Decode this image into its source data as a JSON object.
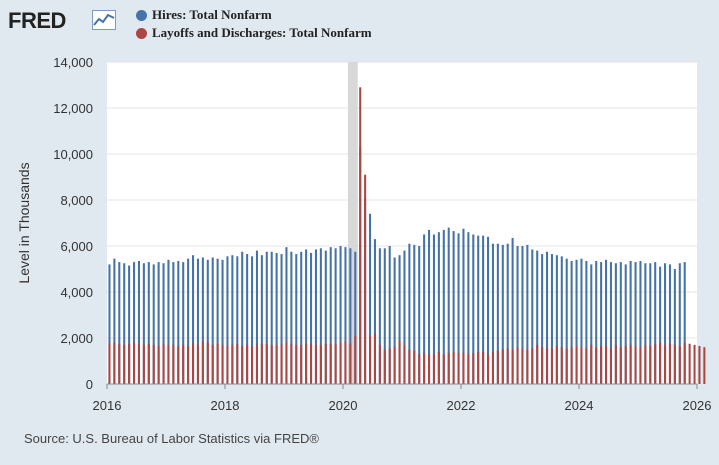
{
  "brand": {
    "logo_text": "FRED",
    "logo_icon": "fred-trend-line-icon"
  },
  "footer": {
    "source": "Source: U.S. Bureau of Labor Statistics via FRED®"
  },
  "chart_data": {
    "type": "bar",
    "ylabel": "Level in Thousands",
    "xlabel": "",
    "ylim": [
      0,
      14000
    ],
    "yticks": [
      0,
      2000,
      4000,
      6000,
      8000,
      10000,
      12000,
      14000
    ],
    "ytick_labels": [
      "0",
      "2,000",
      "4,000",
      "6,000",
      "8,000",
      "10,000",
      "12,000",
      "14,000"
    ],
    "x_range": [
      "2016-01",
      "2026-01"
    ],
    "xtick_labels": [
      "2016",
      "2018",
      "2020",
      "2022",
      "2024",
      "2026"
    ],
    "grid": true,
    "legend_position": "top-left",
    "recession_shading": [
      "2020-02",
      "2020-04"
    ],
    "series": [
      {
        "name": "Hires: Total Nonfarm",
        "color": "#4572a7",
        "start": "2016-01",
        "values": [
          5200,
          5450,
          5300,
          5250,
          5150,
          5300,
          5350,
          5250,
          5300,
          5200,
          5300,
          5250,
          5400,
          5300,
          5350,
          5300,
          5450,
          5600,
          5450,
          5500,
          5400,
          5500,
          5450,
          5400,
          5550,
          5600,
          5550,
          5750,
          5650,
          5550,
          5800,
          5600,
          5750,
          5750,
          5700,
          5650,
          5950,
          5750,
          5650,
          5750,
          5850,
          5700,
          5850,
          5900,
          5800,
          5950,
          5900,
          6000,
          5950,
          5900,
          5750,
          10300,
          8100,
          7400,
          6300,
          5900,
          5900,
          6000,
          5500,
          5600,
          5800,
          6100,
          6050,
          6000,
          6500,
          6700,
          6500,
          6600,
          6700,
          6800,
          6650,
          6550,
          6750,
          6600,
          6500,
          6450,
          6450,
          6400,
          6100,
          6100,
          6050,
          6100,
          6350,
          6000,
          6000,
          6050,
          5850,
          5800,
          5650,
          5750,
          5650,
          5600,
          5550,
          5450,
          5350,
          5400,
          5450,
          5350,
          5200,
          5350,
          5300,
          5400,
          5300,
          5250,
          5300,
          5200,
          5350,
          5300,
          5350,
          5250,
          5250,
          5300,
          5100,
          5250,
          5200,
          5000,
          5250,
          5300
        ]
      },
      {
        "name": "Layoffs and Discharges: Total Nonfarm",
        "color": "#aa4643",
        "start": "2016-01",
        "values": [
          1750,
          1800,
          1750,
          1700,
          1750,
          1800,
          1750,
          1700,
          1750,
          1700,
          1650,
          1750,
          1700,
          1700,
          1650,
          1700,
          1650,
          1750,
          1700,
          1850,
          1800,
          1700,
          1750,
          1700,
          1650,
          1700,
          1750,
          1650,
          1700,
          1650,
          1700,
          1750,
          1750,
          1700,
          1700,
          1750,
          1800,
          1750,
          1700,
          1700,
          1750,
          1750,
          1700,
          1700,
          1750,
          1750,
          1750,
          1800,
          1850,
          1750,
          2100,
          12900,
          9100,
          2100,
          2200,
          1700,
          1500,
          1550,
          1600,
          1900,
          1700,
          1500,
          1450,
          1300,
          1350,
          1300,
          1300,
          1400,
          1300,
          1350,
          1400,
          1350,
          1350,
          1300,
          1350,
          1400,
          1400,
          1300,
          1400,
          1450,
          1500,
          1550,
          1500,
          1600,
          1550,
          1500,
          1550,
          1700,
          1600,
          1550,
          1550,
          1650,
          1600,
          1550,
          1600,
          1650,
          1600,
          1550,
          1700,
          1600,
          1650,
          1650,
          1550,
          1700,
          1600,
          1650,
          1700,
          1650,
          1600,
          1700,
          1650,
          1750,
          1800,
          1700,
          1750,
          1700,
          1650,
          1800,
          1750,
          1700,
          1650,
          1600
        ]
      }
    ]
  }
}
